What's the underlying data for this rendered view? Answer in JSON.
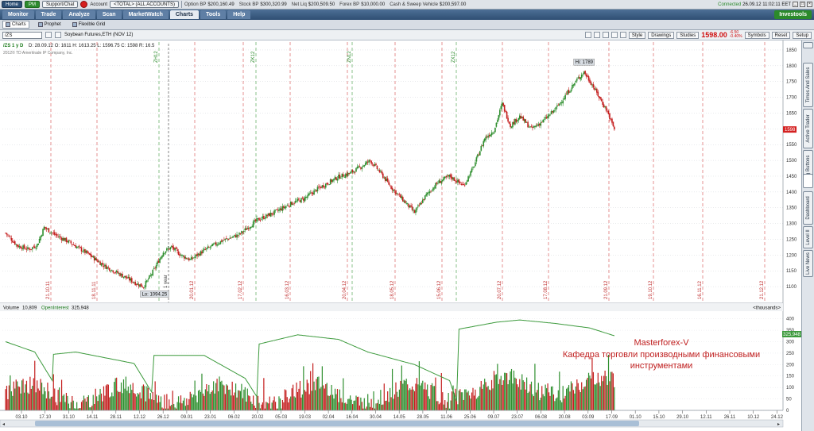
{
  "topbar": {
    "home_label": "Home",
    "pm_label": "PM",
    "support_label": "Support/Chat",
    "account_label": "Account",
    "account_value": "<TOTAL> (ALL ACCOUNTS)",
    "option_bp_label": "Option BP",
    "option_bp_value": "$200,160.49",
    "stock_bp_label": "Stock BP",
    "stock_bp_value": "$300,320.99",
    "net_liq_label": "Net Liq",
    "net_liq_value": "$200,509.50",
    "forex_bp_label": "Forex BP",
    "forex_bp_value": "$10,000.00",
    "cash_label": "Cash & Sweep Vehicle",
    "cash_value": "$200,597.00",
    "connection_label": "Connected",
    "datetime": "26.09.12 11:02:11 EET"
  },
  "tabs": [
    "Monitor",
    "Trade",
    "Analyze",
    "Scan",
    "MarketWatch",
    "Charts",
    "Tools",
    "Help"
  ],
  "active_tab": "Charts",
  "investools_label": "Investools",
  "subtabs": [
    "Charts",
    "Prophet",
    "Flexible Grid"
  ],
  "symbol": {
    "value": "/ZS",
    "description": "Soybean Futures,ETH (NOV 12)",
    "style_label": "Style",
    "drawings_label": "Drawings",
    "studies_label": "Studies",
    "price": "1598.00",
    "change": "-6.50",
    "change_pct": "-0.40%",
    "symbols_label": "Symbols",
    "reset_label": "Reset",
    "setup_label": "Setup"
  },
  "sidebar_tabs": [
    "Times And Sales",
    "Active Trader",
    "Big Buttons",
    "Dashboard",
    "Level II",
    "Live News"
  ],
  "chart_data": [
    {
      "type": "candlestick",
      "period_label": "/ZS 1 y D",
      "ohlc_header": {
        "D": "28.09.12",
        "O": "1611",
        "H": "1613.25",
        "L": "1596.75",
        "C": "1598",
        "R": "16.5"
      },
      "copyright": "2012© TD Ameritrade IP Company, Inc.",
      "ylim": [
        1050,
        1870
      ],
      "y_ticks": [
        1100,
        1150,
        1200,
        1250,
        1300,
        1350,
        1400,
        1450,
        1500,
        1550,
        1600,
        1650,
        1700,
        1750,
        1800,
        1850
      ],
      "last_price_label": "1598",
      "high_label": "Hi: 1789",
      "low_label": "Lo: 1094.25",
      "range_label": "1 year",
      "date_markers": [
        {
          "label": "21.10.11",
          "kind": "date"
        },
        {
          "label": "18.11.11",
          "kind": "date"
        },
        {
          "label": "ZH12",
          "kind": "expiry"
        },
        {
          "label": "20.01.12",
          "kind": "date"
        },
        {
          "label": "17.02.12",
          "kind": "date"
        },
        {
          "label": "ZK12",
          "kind": "expiry"
        },
        {
          "label": "16.03.12",
          "kind": "date"
        },
        {
          "label": "20.04.12",
          "kind": "date"
        },
        {
          "label": "ZN12",
          "kind": "expiry"
        },
        {
          "label": "18.05.12",
          "kind": "date"
        },
        {
          "label": "15.06.12",
          "kind": "date"
        },
        {
          "label": "ZX12",
          "kind": "expiry"
        },
        {
          "label": "20.07.12",
          "kind": "date"
        },
        {
          "label": "17.08.12",
          "kind": "date"
        },
        {
          "label": "21.09.12",
          "kind": "date"
        },
        {
          "label": "19.10.12",
          "kind": "date"
        },
        {
          "label": "16.11.12",
          "kind": "date"
        },
        {
          "label": "21.12.12",
          "kind": "date"
        }
      ],
      "key_closes": [
        {
          "x": 0,
          "y": 1270
        },
        {
          "x": 10,
          "y": 1230
        },
        {
          "x": 20,
          "y": 1218
        },
        {
          "x": 27,
          "y": 1232
        },
        {
          "x": 33,
          "y": 1288
        },
        {
          "x": 42,
          "y": 1265
        },
        {
          "x": 55,
          "y": 1240
        },
        {
          "x": 70,
          "y": 1205
        },
        {
          "x": 85,
          "y": 1165
        },
        {
          "x": 100,
          "y": 1135
        },
        {
          "x": 112,
          "y": 1110
        },
        {
          "x": 118,
          "y": 1100
        },
        {
          "x": 125,
          "y": 1140
        },
        {
          "x": 135,
          "y": 1210
        },
        {
          "x": 142,
          "y": 1225
        },
        {
          "x": 150,
          "y": 1200
        },
        {
          "x": 158,
          "y": 1185
        },
        {
          "x": 170,
          "y": 1215
        },
        {
          "x": 185,
          "y": 1245
        },
        {
          "x": 200,
          "y": 1265
        },
        {
          "x": 215,
          "y": 1310
        },
        {
          "x": 230,
          "y": 1335
        },
        {
          "x": 245,
          "y": 1365
        },
        {
          "x": 255,
          "y": 1378
        },
        {
          "x": 268,
          "y": 1412
        },
        {
          "x": 285,
          "y": 1448
        },
        {
          "x": 295,
          "y": 1460
        },
        {
          "x": 305,
          "y": 1482
        },
        {
          "x": 312,
          "y": 1500
        },
        {
          "x": 320,
          "y": 1465
        },
        {
          "x": 330,
          "y": 1415
        },
        {
          "x": 340,
          "y": 1375
        },
        {
          "x": 350,
          "y": 1335
        },
        {
          "x": 360,
          "y": 1390
        },
        {
          "x": 370,
          "y": 1430
        },
        {
          "x": 380,
          "y": 1450
        },
        {
          "x": 392,
          "y": 1420
        },
        {
          "x": 400,
          "y": 1475
        },
        {
          "x": 410,
          "y": 1570
        },
        {
          "x": 418,
          "y": 1595
        },
        {
          "x": 425,
          "y": 1680
        },
        {
          "x": 432,
          "y": 1610
        },
        {
          "x": 440,
          "y": 1640
        },
        {
          "x": 450,
          "y": 1600
        },
        {
          "x": 460,
          "y": 1625
        },
        {
          "x": 470,
          "y": 1660
        },
        {
          "x": 480,
          "y": 1710
        },
        {
          "x": 490,
          "y": 1760
        },
        {
          "x": 495,
          "y": 1780
        },
        {
          "x": 502,
          "y": 1740
        },
        {
          "x": 508,
          "y": 1700
        },
        {
          "x": 515,
          "y": 1655
        },
        {
          "x": 521,
          "y": 1598
        }
      ]
    },
    {
      "type": "bar+line",
      "volume_label": "Volume",
      "volume_value": "10,809",
      "oi_label": "OpenInterest",
      "oi_value": "325,948",
      "units_label": "<thousands>",
      "ylim": [
        0,
        430
      ],
      "y_ticks": [
        0,
        50,
        100,
        150,
        200,
        250,
        300,
        350,
        400
      ],
      "x_ticks": [
        "03.10",
        "17.10",
        "31.10",
        "14.11",
        "28.11",
        "12.12",
        "26.12",
        "09.01",
        "23.01",
        "06.02",
        "20.02",
        "05.03",
        "19.03",
        "02.04",
        "16.04",
        "30.04",
        "14.05",
        "28.05",
        "11.06",
        "25.06",
        "09.07",
        "23.07",
        "06.08",
        "20.08",
        "03.09",
        "17.09",
        "01.10",
        "15.10",
        "29.10",
        "12.11",
        "26.11",
        "10.12",
        "24.12"
      ],
      "open_interest_key": [
        {
          "x": 0,
          "y": 300
        },
        {
          "x": 25,
          "y": 255
        },
        {
          "x": 40,
          "y": 130
        },
        {
          "x": 41,
          "y": 245
        },
        {
          "x": 60,
          "y": 255
        },
        {
          "x": 110,
          "y": 205
        },
        {
          "x": 125,
          "y": 80
        },
        {
          "x": 127,
          "y": 240
        },
        {
          "x": 170,
          "y": 240
        },
        {
          "x": 205,
          "y": 140
        },
        {
          "x": 215,
          "y": 60
        },
        {
          "x": 217,
          "y": 290
        },
        {
          "x": 250,
          "y": 330
        },
        {
          "x": 285,
          "y": 310
        },
        {
          "x": 310,
          "y": 255
        },
        {
          "x": 350,
          "y": 200
        },
        {
          "x": 380,
          "y": 130
        },
        {
          "x": 386,
          "y": 40
        },
        {
          "x": 388,
          "y": 355
        },
        {
          "x": 420,
          "y": 385
        },
        {
          "x": 440,
          "y": 395
        },
        {
          "x": 470,
          "y": 380
        },
        {
          "x": 500,
          "y": 360
        },
        {
          "x": 521,
          "y": 326
        }
      ]
    }
  ],
  "watermark": {
    "line1": "Masterforex-V",
    "line2": "Кафедра торговли производными финансовыми",
    "line3": "инструментами"
  }
}
